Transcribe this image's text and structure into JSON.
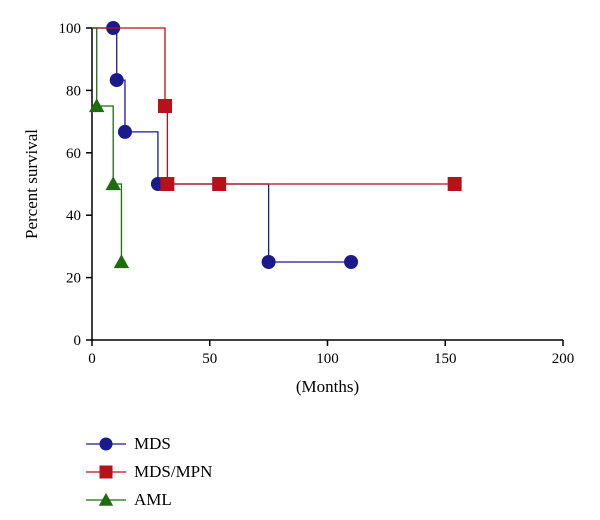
{
  "chart_data": {
    "type": "line",
    "title": "",
    "xlabel": "(Months)",
    "ylabel": "Percent survival",
    "xlim": [
      0,
      200
    ],
    "ylim": [
      0,
      100
    ],
    "x_ticks": [
      0,
      50,
      100,
      150,
      200
    ],
    "y_ticks": [
      0,
      20,
      40,
      60,
      80,
      100
    ],
    "grid": false,
    "legend_position": "bottom-left",
    "step": true,
    "series": [
      {
        "name": "MDS",
        "color": "#1a1a8c",
        "marker": "circle",
        "points": [
          [
            0,
            100
          ],
          [
            9,
            100
          ],
          [
            10.5,
            83.3
          ],
          [
            14,
            66.7
          ],
          [
            28,
            50
          ],
          [
            75,
            25
          ],
          [
            110,
            25
          ]
        ]
      },
      {
        "name": "MDS/MPN",
        "color": "#b5121b",
        "marker": "square",
        "points": [
          [
            0,
            100
          ],
          [
            31,
            75
          ],
          [
            32,
            50
          ],
          [
            54,
            50
          ],
          [
            154,
            50
          ]
        ]
      },
      {
        "name": "AML",
        "color": "#1e6b12",
        "marker": "triangle",
        "points": [
          [
            0,
            100
          ],
          [
            2,
            75
          ],
          [
            9,
            50
          ],
          [
            12.5,
            25
          ]
        ]
      }
    ]
  }
}
